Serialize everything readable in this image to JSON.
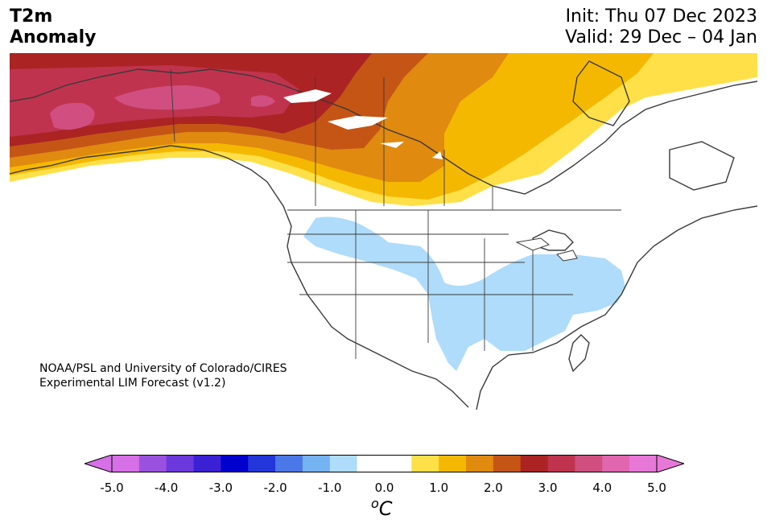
{
  "header": {
    "title_line1": "T2m",
    "title_line2": "Anomaly",
    "init": "Init: Thu 07 Dec 2023",
    "valid": "Valid: 29 Dec – 04 Jan"
  },
  "credit": {
    "line1": "NOAA/PSL and University of Colorado/CIRES",
    "line2": "Experimental LIM Forecast (v1.2)"
  },
  "colorbar": {
    "unit": "C",
    "unit_sup": "o",
    "ticks": [
      "-5.0",
      "-4.0",
      "-3.0",
      "-2.0",
      "-1.0",
      "0.0",
      "1.0",
      "2.0",
      "3.0",
      "4.0",
      "5.0"
    ],
    "colors": [
      "#d670e6",
      "#9b51e0",
      "#6b38dd",
      "#3a22d4",
      "#0000cc",
      "#2336d9",
      "#4a78e6",
      "#74b2f2",
      "#aedcfa",
      "#ffffff",
      "#ffffff",
      "#ffe048",
      "#f5b800",
      "#e08a10",
      "#c55515",
      "#ab2323",
      "#c0334e",
      "#d04f80",
      "#e166b0",
      "#e878d8"
    ],
    "under_color": "#d670e6",
    "over_color": "#e878d8"
  },
  "map": {
    "region": "North America",
    "palette": {
      "warm1": "#ffe048",
      "warm2": "#f5b800",
      "warm3": "#e08a10",
      "warm4": "#c55515",
      "warm5": "#ab2323",
      "warm6": "#c0334e",
      "warm7": "#d04f80",
      "cool1": "#aedcfa",
      "land_line": "#3a3a3a"
    }
  }
}
